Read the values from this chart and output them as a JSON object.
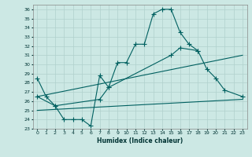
{
  "title": "",
  "xlabel": "Humidex (Indice chaleur)",
  "bg_color": "#cce8e4",
  "grid_color": "#b0d0cc",
  "line_color": "#006060",
  "xlim": [
    -0.5,
    23.5
  ],
  "ylim": [
    23,
    36.5
  ],
  "xticks": [
    0,
    1,
    2,
    3,
    4,
    5,
    6,
    7,
    8,
    9,
    10,
    11,
    12,
    13,
    14,
    15,
    16,
    17,
    18,
    19,
    20,
    21,
    22,
    23
  ],
  "yticks": [
    23,
    24,
    25,
    26,
    27,
    28,
    29,
    30,
    31,
    32,
    33,
    34,
    35,
    36
  ],
  "line1_x": [
    0,
    1,
    2,
    3,
    4,
    5,
    6,
    7,
    8,
    9,
    10,
    11,
    12,
    13,
    14,
    15,
    16,
    17,
    18,
    19,
    20,
    21,
    22,
    23
  ],
  "line1_y": [
    28.5,
    26.5,
    25.5,
    24.0,
    24.0,
    24.0,
    23.3,
    28.8,
    27.5,
    30.2,
    30.2,
    32.2,
    32.2,
    35.5,
    36.0,
    36.0,
    33.5,
    32.2,
    31.5,
    null,
    null,
    null,
    null,
    null
  ],
  "line2_x": [
    0,
    1,
    2,
    3,
    4,
    5,
    6,
    7,
    8,
    9,
    10,
    11,
    12,
    13,
    14,
    15,
    16,
    17,
    18,
    19,
    20,
    21,
    22,
    23
  ],
  "line2_y": [
    26.5,
    null,
    25.5,
    null,
    null,
    null,
    null,
    26.2,
    27.5,
    null,
    null,
    null,
    null,
    null,
    null,
    31.0,
    31.8,
    null,
    31.5,
    29.5,
    28.5,
    27.2,
    null,
    26.5
  ],
  "line3_x": [
    0,
    23
  ],
  "line3_y": [
    26.5,
    31.0
  ],
  "line4_x": [
    0,
    23
  ],
  "line4_y": [
    25.0,
    26.2
  ]
}
